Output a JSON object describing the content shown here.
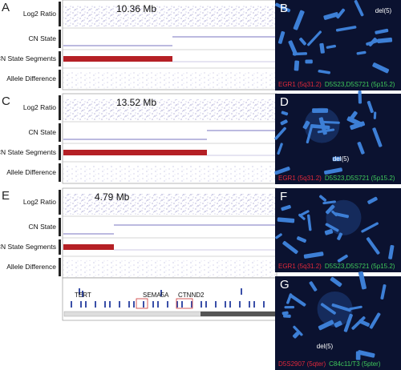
{
  "panels": [
    {
      "letter": "A",
      "size": "10.36 Mb",
      "tracks": [
        "Log2 Ratio",
        "CN State",
        "CN State Segments",
        "Allele Difference"
      ]
    },
    {
      "letter": "C",
      "size": "13.52 Mb",
      "tracks": [
        "Log2 Ratio",
        "CN State",
        "CN State Segments",
        "Allele Difference"
      ]
    },
    {
      "letter": "E",
      "size": "4.79 Mb",
      "tracks": [
        "Log2 Ratio",
        "CN State",
        "CN State Segments",
        "Allele Difference"
      ]
    }
  ],
  "fish": [
    {
      "letter": "B",
      "probe1": "EGR1 (5q31.2)",
      "probe2": "D5S23,D5S721 (5p15.2)",
      "annotation": "del(5)"
    },
    {
      "letter": "D",
      "probe1": "EGR1 (5q31.2)",
      "probe2": "D5S23,D5S721 (5p15.2)",
      "annotation": "del(5)"
    },
    {
      "letter": "F",
      "probe1": "EGR1 (5q31.2)",
      "probe2": "D5S23,D5S721 (5p15.2)"
    },
    {
      "letter": "G",
      "probe1": "D5S2907 (5qter)",
      "probe2": "C84c11/T3 (5pter)",
      "annotation": "del(5)"
    }
  ],
  "genes": [
    "TERT",
    "SEMA5A",
    "CTNND2"
  ]
}
